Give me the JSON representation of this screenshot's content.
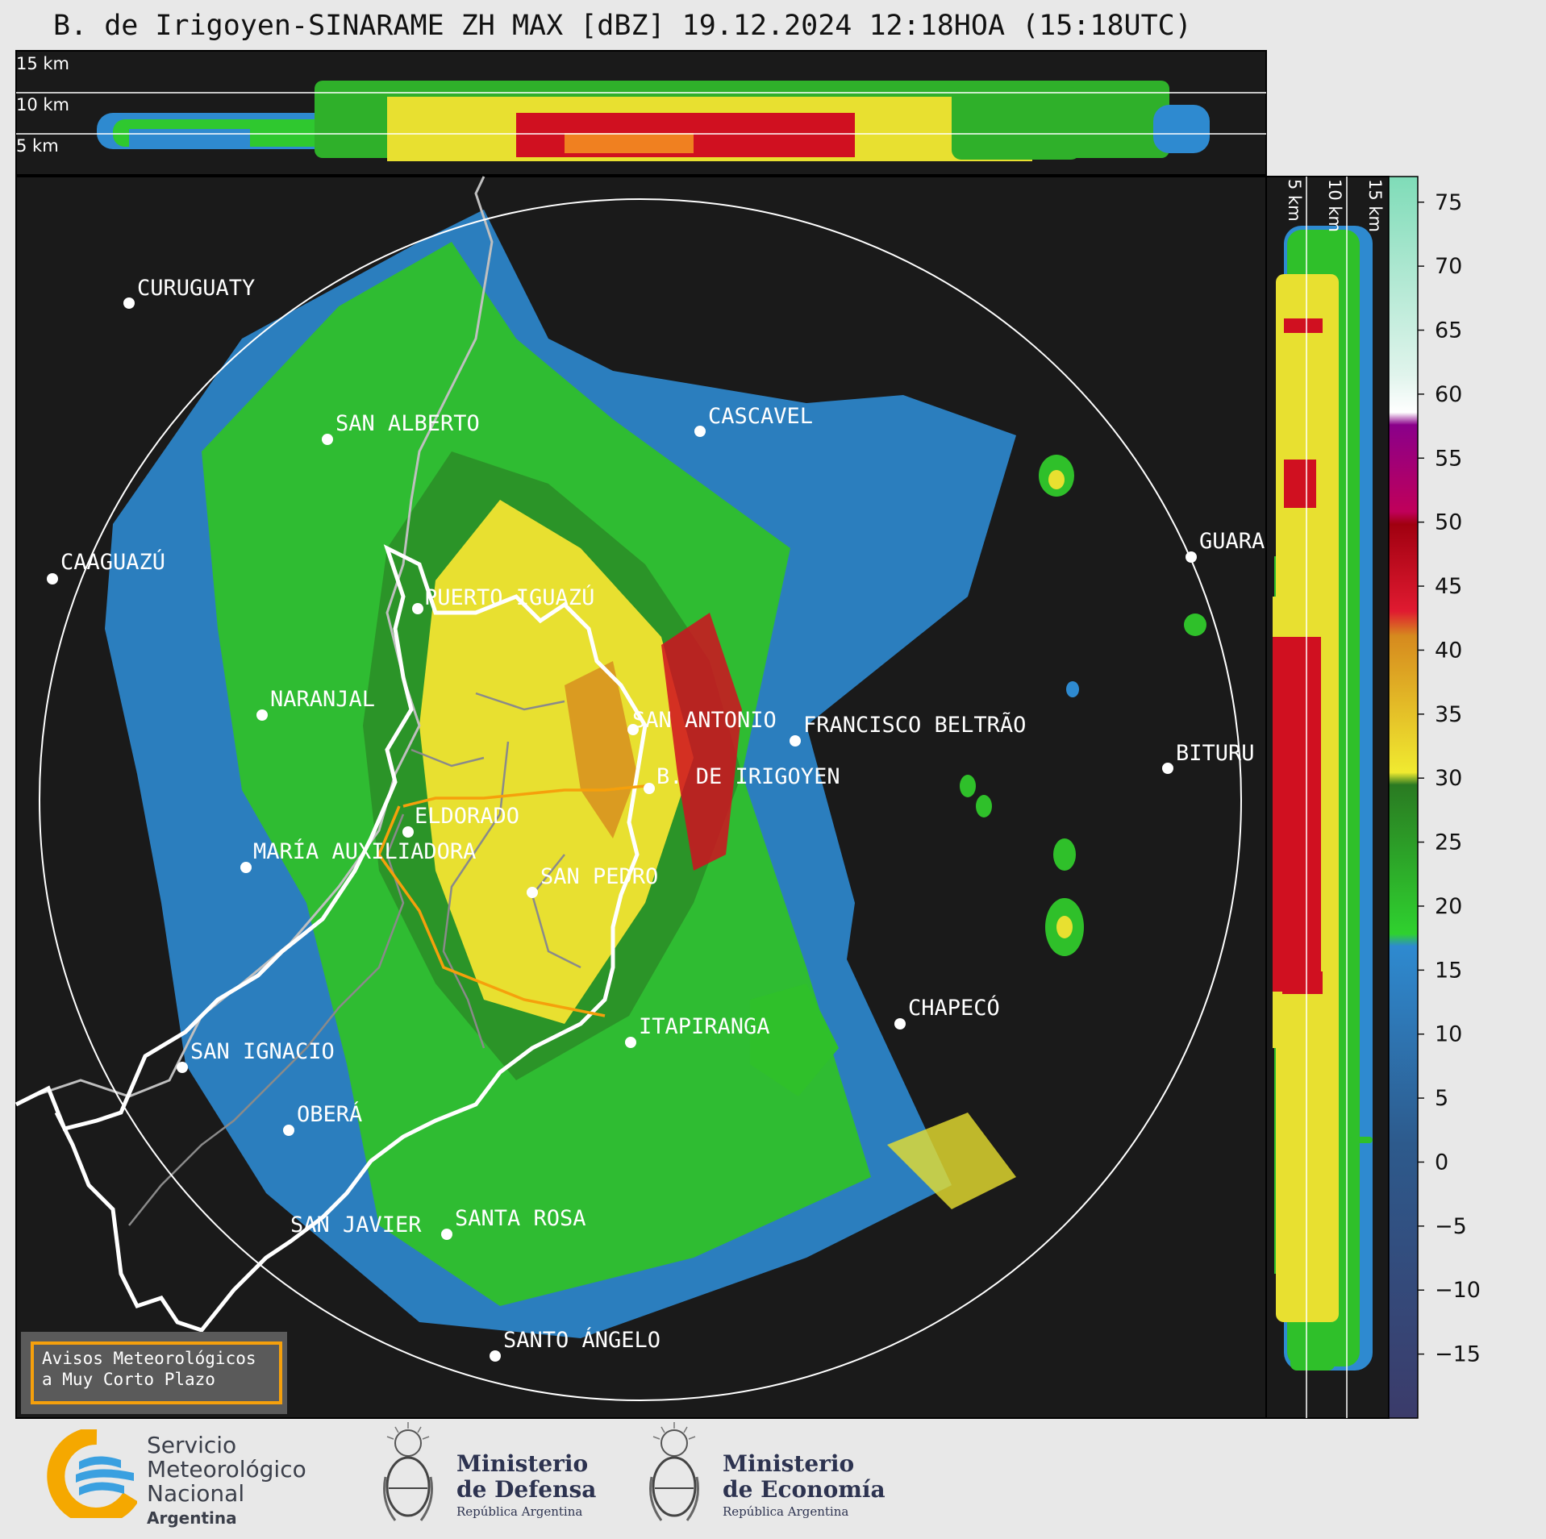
{
  "title": "B. de Irigoyen-SINARAME ZH MAX [dBZ] 19.12.2024 12:18HOA (15:18UTC)",
  "height_labels_top": [
    "15 km",
    "10 km",
    "5 km"
  ],
  "height_labels_side": [
    "5 km",
    "10 km",
    "15 km"
  ],
  "cities": [
    {
      "name": "CURUGUATY"
    },
    {
      "name": "SAN ALBERTO"
    },
    {
      "name": "CASCAVEL"
    },
    {
      "name": "CAAGUAZÚ"
    },
    {
      "name": "GUARA"
    },
    {
      "name": "PUERTO IGUAZÚ"
    },
    {
      "name": "NARANJAL"
    },
    {
      "name": "SAN ANTONIO"
    },
    {
      "name": "FRANCISCO BELTRÃO"
    },
    {
      "name": "BITURU"
    },
    {
      "name": "B. DE IRIGOYEN"
    },
    {
      "name": "ELDORADO"
    },
    {
      "name": "MARÍA AUXILIADORA"
    },
    {
      "name": "SAN PEDRO"
    },
    {
      "name": "CHAPECÓ"
    },
    {
      "name": "ITAPIRANGA"
    },
    {
      "name": "SAN IGNACIO"
    },
    {
      "name": "OBERÁ"
    },
    {
      "name": "SAN JAVIER"
    },
    {
      "name": "SANTA ROSA"
    },
    {
      "name": "SANTO ÁNGELO"
    }
  ],
  "colorbar": {
    "unit": "dBZ",
    "min": -20,
    "max": 77,
    "ticks": [
      "75",
      "70",
      "65",
      "60",
      "55",
      "50",
      "45",
      "40",
      "35",
      "30",
      "25",
      "20",
      "15",
      "10",
      "5",
      "0",
      "−5",
      "−10",
      "−15"
    ],
    "bands": [
      {
        "from": -20,
        "to": 18,
        "color": "#2e6aa8"
      },
      {
        "from": 18,
        "to": 30,
        "color": "#2fd12f"
      },
      {
        "from": 30,
        "to": 43,
        "color": "#e8e030"
      },
      {
        "from": 43,
        "to": 50,
        "color": "#c0001a"
      },
      {
        "from": 50,
        "to": 58,
        "color": "#e000e0"
      },
      {
        "from": 58,
        "to": 61,
        "color": "#ffffff"
      },
      {
        "from": 61,
        "to": 77,
        "color": "#7fdcb8"
      }
    ]
  },
  "notice": {
    "line1": "Avisos Meteorológicos",
    "line2": "a Muy Corto Plazo"
  },
  "logos": {
    "smn": {
      "line1": "Servicio",
      "line2": "Meteorológico",
      "line3": "Nacional",
      "line4": "Argentina"
    },
    "defensa": {
      "line1": "Ministerio",
      "line2": "de Defensa",
      "line3": "República Argentina"
    },
    "economia": {
      "line1": "Ministerio",
      "line2": "de Economía",
      "line3": "República Argentina"
    }
  },
  "colors": {
    "background": "#1a1a1a",
    "page": "#e8e8e8",
    "range_ring": "#ffffff",
    "province_border": "#ffffff",
    "region_outline": "#f5a00c"
  }
}
